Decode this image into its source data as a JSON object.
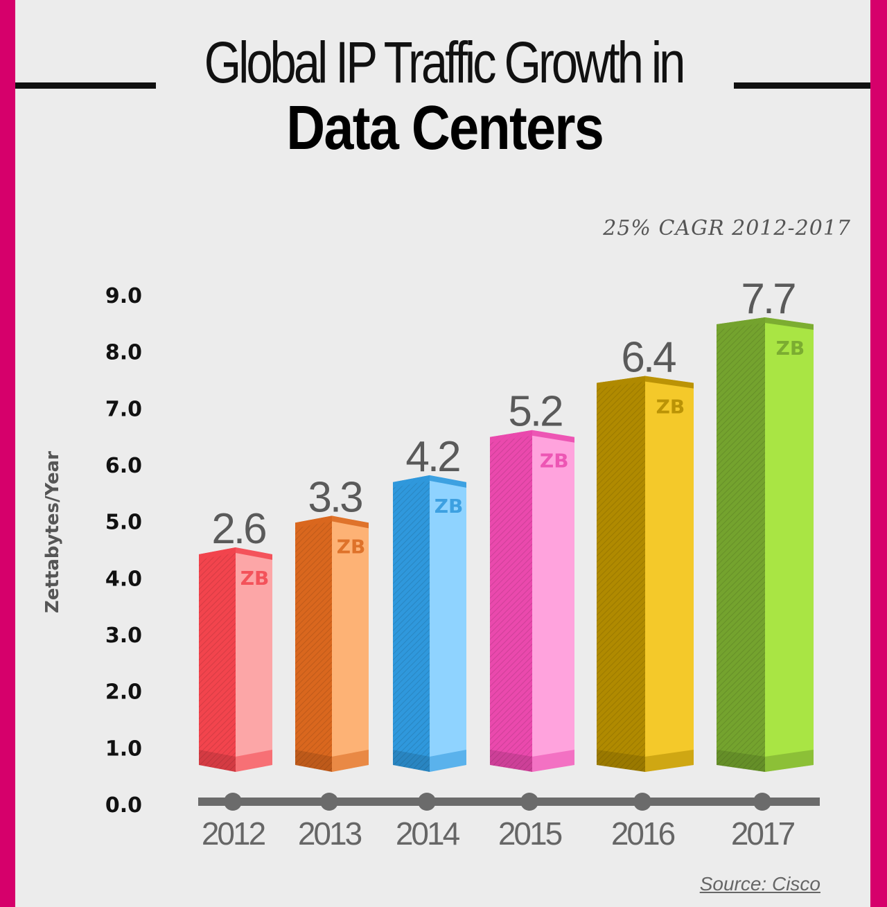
{
  "title": {
    "line1": "Global IP Traffic Growth in",
    "line2": "Data Centers"
  },
  "annotation": "25% CAGR 2012-2017",
  "source": "Source: Cisco",
  "chart_data": {
    "type": "bar",
    "title": "Global IP Traffic Growth in Data Centers",
    "ylabel": "Zettabytes/Year",
    "xlabel": "",
    "ylim": [
      0,
      9
    ],
    "yticks": [
      "0.0",
      "1.0",
      "2.0",
      "3.0",
      "4.0",
      "5.0",
      "6.0",
      "7.0",
      "8.0",
      "9.0"
    ],
    "grid": false,
    "categories": [
      "2012",
      "2013",
      "2014",
      "2015",
      "2016",
      "2017"
    ],
    "values": [
      2.6,
      3.3,
      4.2,
      5.2,
      6.4,
      7.7
    ],
    "value_labels": [
      "2.6",
      "3.3",
      "4.2",
      "5.2",
      "6.4",
      "7.7"
    ],
    "unit_label": "ZB",
    "colors": [
      {
        "dark": "#f2444d",
        "light": "#fca6a7"
      },
      {
        "dark": "#d9671e",
        "light": "#fdb275"
      },
      {
        "dark": "#2f98dc",
        "light": "#8fd3ff"
      },
      {
        "dark": "#ea49ad",
        "light": "#ffa3dd"
      },
      {
        "dark": "#b08a00",
        "light": "#f4c92a"
      },
      {
        "dark": "#74a32e",
        "light": "#a9e544"
      }
    ],
    "axis_color": "#6b6b6b"
  }
}
